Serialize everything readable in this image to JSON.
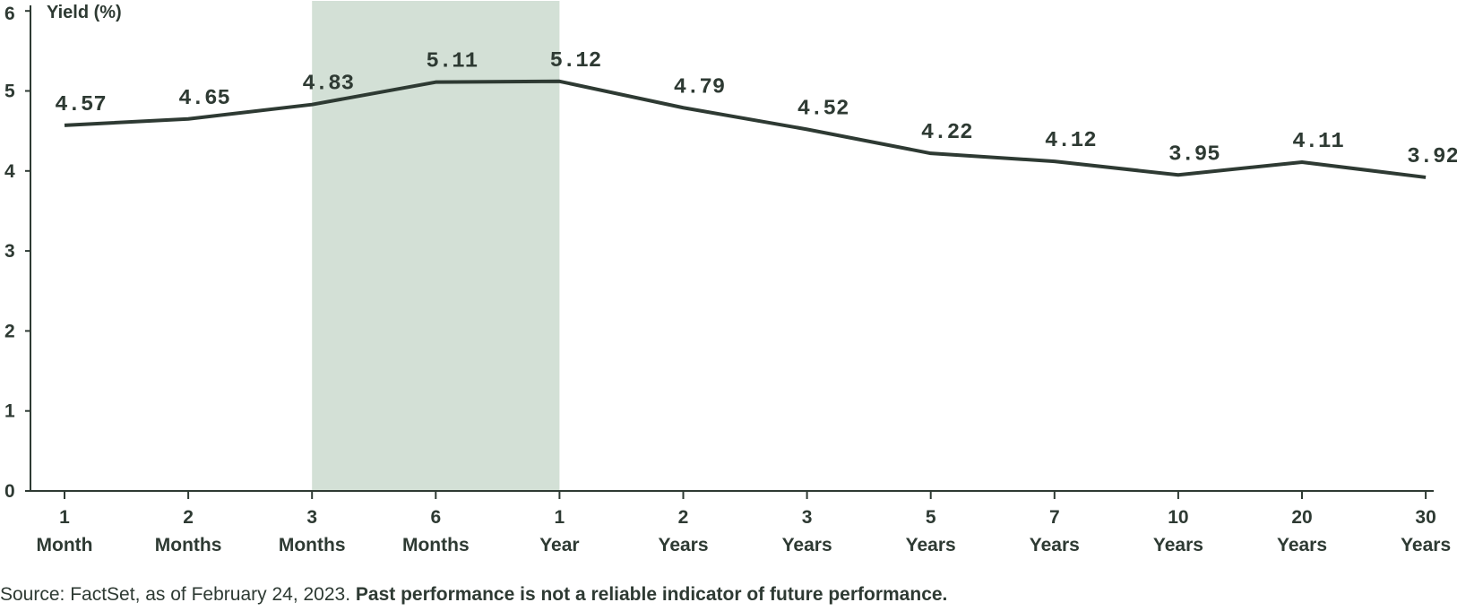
{
  "chart_data": {
    "type": "line",
    "ylabel": "Yield (%)",
    "ylim": [
      0,
      6
    ],
    "yticks": [
      "0",
      "1",
      "2",
      "3",
      "4",
      "5",
      "6"
    ],
    "categories": [
      [
        "1",
        "Month"
      ],
      [
        "2",
        "Months"
      ],
      [
        "3",
        "Months"
      ],
      [
        "6",
        "Months"
      ],
      [
        "1",
        "Year"
      ],
      [
        "2",
        "Years"
      ],
      [
        "3",
        "Years"
      ],
      [
        "5",
        "Years"
      ],
      [
        "7",
        "Years"
      ],
      [
        "10",
        "Years"
      ],
      [
        "20",
        "Years"
      ],
      [
        "30",
        "Years"
      ]
    ],
    "series": [
      {
        "values": [
          4.57,
          4.65,
          4.83,
          5.11,
          5.12,
          4.79,
          4.52,
          4.22,
          4.12,
          3.95,
          4.11,
          3.92
        ]
      }
    ],
    "data_labels": [
      "4.57",
      "4.65",
      "4.83",
      "5.11",
      "5.12",
      "4.79",
      "4.52",
      "4.22",
      "4.12",
      "3.95",
      "4.11",
      "3.92"
    ],
    "highlight_range": {
      "from": "3 Months",
      "to": "1 Year"
    },
    "grid": false,
    "colors": {
      "line": "#2e3a33",
      "highlight": "#d3e0d6",
      "text": "#2e3a33",
      "axis": "#2e3a33"
    }
  },
  "footnote": {
    "source": "Source: FactSet, as of February 24, 2023. ",
    "disclaimer": "Past performance is not a reliable indicator of future performance."
  }
}
